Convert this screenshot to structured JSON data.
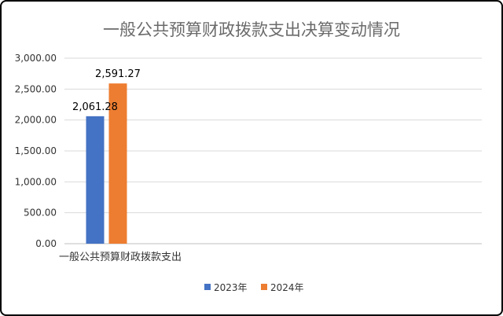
{
  "chart_data": {
    "type": "bar",
    "title": "一般公共预算财政拨款支出决算变动情况",
    "categories": [
      "一般公共预算财政拨款支出"
    ],
    "series": [
      {
        "name": "2023年",
        "values": [
          2061.28
        ],
        "color": "#4472c4"
      },
      {
        "name": "2024年",
        "values": [
          2591.27
        ],
        "color": "#ed7d31"
      }
    ],
    "data_labels": [
      "2,061.28",
      "2,591.27"
    ],
    "y_ticks": [
      "0.00",
      "500.00",
      "1,000.00",
      "1,500.00",
      "2,000.00",
      "2,500.00",
      "3,000.00"
    ],
    "ylim": [
      0,
      3000
    ],
    "grid": true,
    "legend_position": "bottom"
  }
}
